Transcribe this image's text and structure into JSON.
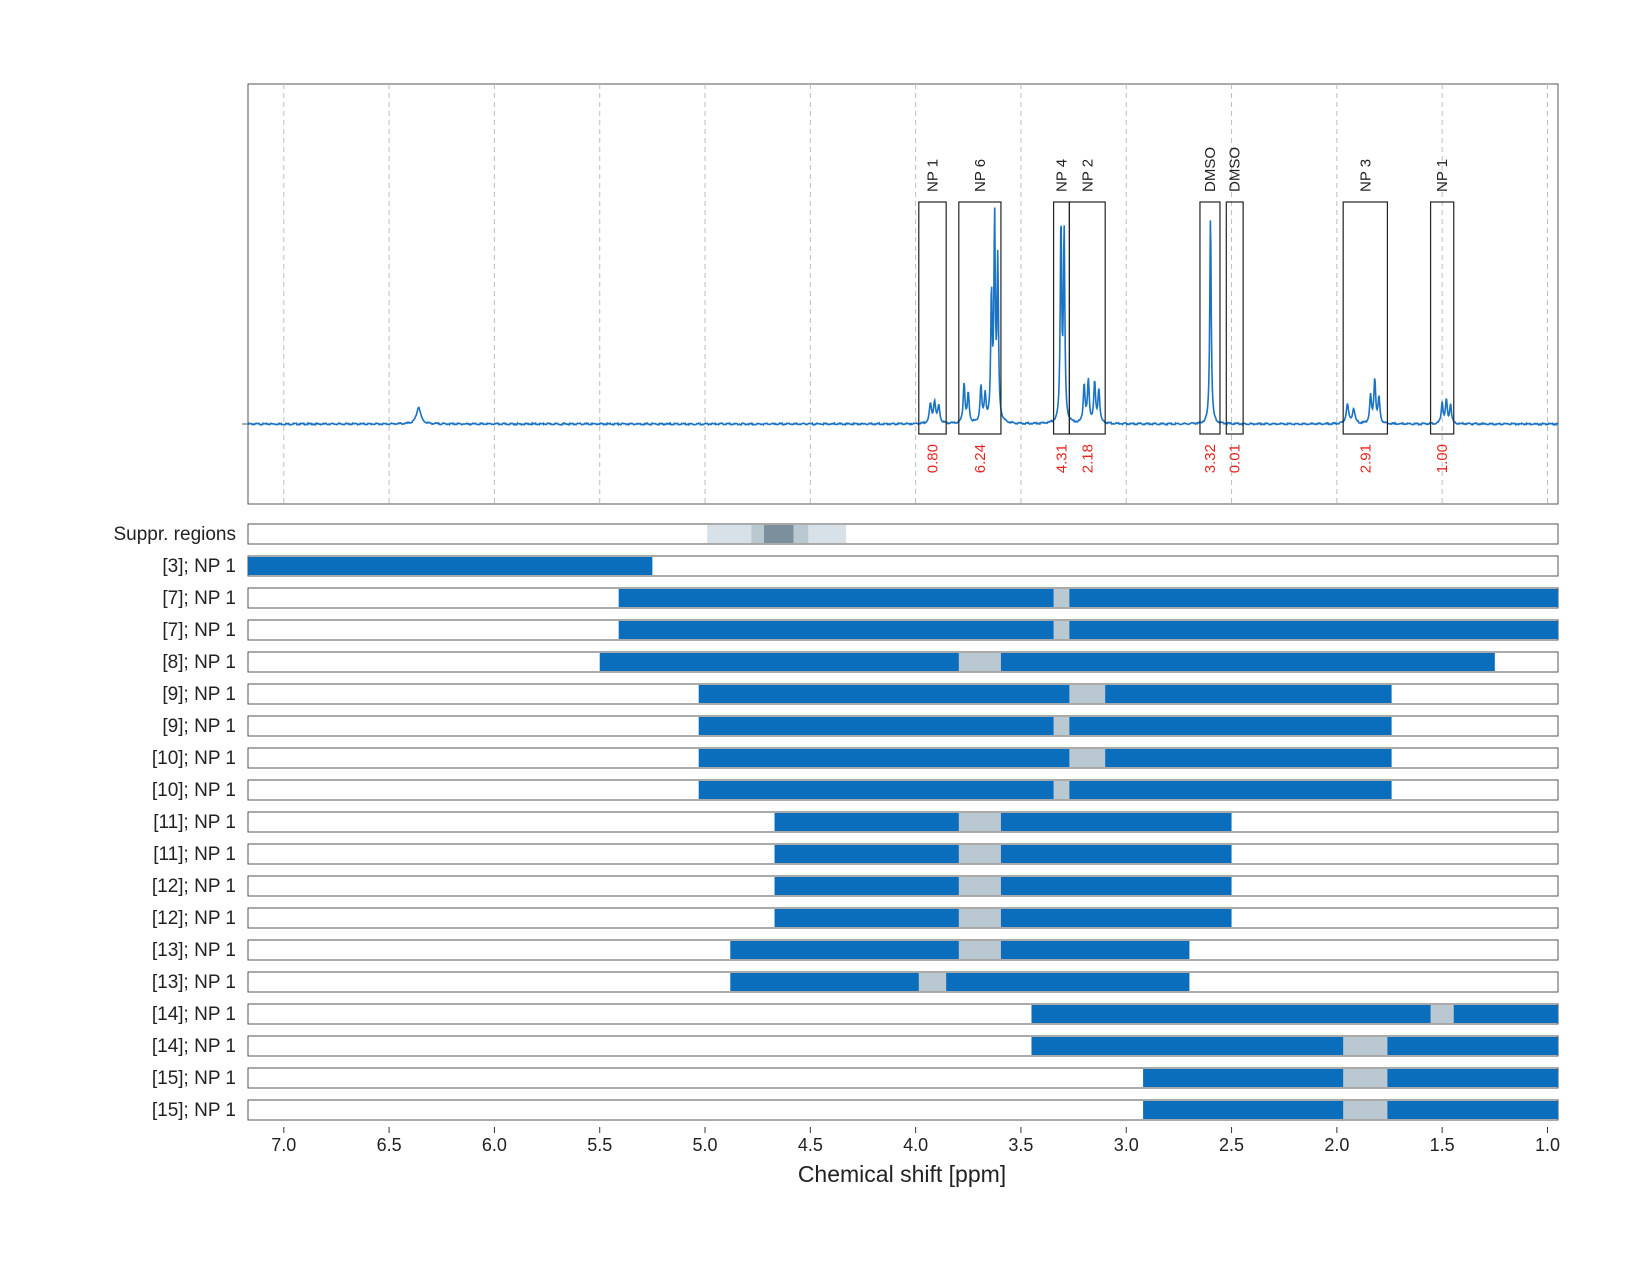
{
  "chart_data": {
    "type": "nmr-spectrum-with-range-bars",
    "xlabel": "Chemical shift [ppm]",
    "x_axis": {
      "reversed": true,
      "range": [
        7.17,
        0.95
      ],
      "ticks": [
        7.0,
        6.5,
        6.0,
        5.5,
        5.0,
        4.5,
        4.0,
        3.5,
        3.0,
        2.5,
        2.0,
        1.5,
        1.0
      ],
      "tick_labels": [
        "7.0",
        "6.5",
        "6.0",
        "5.5",
        "5.0",
        "4.5",
        "4.0",
        "3.5",
        "3.0",
        "2.5",
        "2.0",
        "1.5",
        "1.0"
      ]
    },
    "grid": {
      "vertical_dashed": true
    },
    "spectrum": {
      "color": "#1a73c4",
      "baseline": 0,
      "peaks": [
        {
          "center": 6.36,
          "height": 0.08,
          "width": 0.012
        },
        {
          "center": 3.93,
          "height": 0.09,
          "width": 0.006
        },
        {
          "center": 3.91,
          "height": 0.1,
          "width": 0.006
        },
        {
          "center": 3.89,
          "height": 0.08,
          "width": 0.006
        },
        {
          "center": 3.77,
          "height": 0.19,
          "width": 0.005
        },
        {
          "center": 3.75,
          "height": 0.14,
          "width": 0.005
        },
        {
          "center": 3.69,
          "height": 0.17,
          "width": 0.005
        },
        {
          "center": 3.67,
          "height": 0.13,
          "width": 0.005
        },
        {
          "center": 3.64,
          "height": 0.6,
          "width": 0.004
        },
        {
          "center": 3.625,
          "height": 0.95,
          "width": 0.004
        },
        {
          "center": 3.61,
          "height": 0.75,
          "width": 0.004
        },
        {
          "center": 3.31,
          "height": 0.95,
          "width": 0.004
        },
        {
          "center": 3.295,
          "height": 0.9,
          "width": 0.004
        },
        {
          "center": 3.2,
          "height": 0.18,
          "width": 0.005
        },
        {
          "center": 3.18,
          "height": 0.2,
          "width": 0.005
        },
        {
          "center": 3.15,
          "height": 0.19,
          "width": 0.005
        },
        {
          "center": 3.13,
          "height": 0.16,
          "width": 0.005
        },
        {
          "center": 2.6,
          "height": 1.0,
          "width": 0.004
        },
        {
          "center": 1.95,
          "height": 0.09,
          "width": 0.007
        },
        {
          "center": 1.92,
          "height": 0.07,
          "width": 0.007
        },
        {
          "center": 1.84,
          "height": 0.13,
          "width": 0.005
        },
        {
          "center": 1.82,
          "height": 0.21,
          "width": 0.005
        },
        {
          "center": 1.8,
          "height": 0.12,
          "width": 0.005
        },
        {
          "center": 1.5,
          "height": 0.1,
          "width": 0.005
        },
        {
          "center": 1.48,
          "height": 0.11,
          "width": 0.005
        },
        {
          "center": 1.46,
          "height": 0.09,
          "width": 0.005
        }
      ]
    },
    "integration_regions": [
      {
        "label": "NP 1",
        "x_from": 3.985,
        "x_to": 3.855,
        "value": "0.80"
      },
      {
        "label": "NP 6",
        "x_from": 3.795,
        "x_to": 3.595,
        "value": "6.24"
      },
      {
        "label": "NP 4",
        "x_from": 3.345,
        "x_to": 3.27,
        "value": "4.31"
      },
      {
        "label": "NP 2",
        "x_from": 3.27,
        "x_to": 3.1,
        "value": "2.18"
      },
      {
        "label": "DMSO",
        "x_from": 2.65,
        "x_to": 2.555,
        "value": "3.32"
      },
      {
        "label": "DMSO",
        "x_from": 2.525,
        "x_to": 2.445,
        "value": "0.01"
      },
      {
        "label": "NP 3",
        "x_from": 1.97,
        "x_to": 1.76,
        "value": "2.91"
      },
      {
        "label": "NP 1",
        "x_from": 1.555,
        "x_to": 1.445,
        "value": "1.00"
      }
    ],
    "suppression_row": {
      "label": "Suppr. regions",
      "segments": [
        {
          "from": 4.99,
          "to": 4.33,
          "level": 1
        },
        {
          "from": 4.78,
          "to": 4.51,
          "level": 2
        },
        {
          "from": 4.72,
          "to": 4.58,
          "level": 3
        }
      ]
    },
    "range_rows": [
      {
        "label": "[3]; NP 1",
        "from": 7.17,
        "to": 5.25,
        "gaps": []
      },
      {
        "label": "[7]; NP 1",
        "from": 5.41,
        "to": 0.95,
        "gaps": [
          [
            3.345,
            3.27
          ]
        ]
      },
      {
        "label": "[7]; NP 1",
        "from": 5.41,
        "to": 0.95,
        "gaps": [
          [
            3.345,
            3.27
          ]
        ]
      },
      {
        "label": "[8]; NP 1",
        "from": 5.5,
        "to": 1.25,
        "gaps": [
          [
            3.795,
            3.595
          ]
        ]
      },
      {
        "label": "[9]; NP 1",
        "from": 5.03,
        "to": 1.74,
        "gaps": [
          [
            3.27,
            3.1
          ]
        ]
      },
      {
        "label": "[9]; NP 1",
        "from": 5.03,
        "to": 1.74,
        "gaps": [
          [
            3.345,
            3.27
          ]
        ]
      },
      {
        "label": "[10]; NP 1",
        "from": 5.03,
        "to": 1.74,
        "gaps": [
          [
            3.27,
            3.1
          ]
        ]
      },
      {
        "label": "[10]; NP 1",
        "from": 5.03,
        "to": 1.74,
        "gaps": [
          [
            3.345,
            3.27
          ]
        ]
      },
      {
        "label": "[11]; NP 1",
        "from": 4.67,
        "to": 2.5,
        "gaps": [
          [
            3.795,
            3.595
          ]
        ]
      },
      {
        "label": "[11]; NP 1",
        "from": 4.67,
        "to": 2.5,
        "gaps": [
          [
            3.795,
            3.595
          ]
        ]
      },
      {
        "label": "[12]; NP 1",
        "from": 4.67,
        "to": 2.5,
        "gaps": [
          [
            3.795,
            3.595
          ]
        ]
      },
      {
        "label": "[12]; NP 1",
        "from": 4.67,
        "to": 2.5,
        "gaps": [
          [
            3.795,
            3.595
          ]
        ]
      },
      {
        "label": "[13]; NP 1",
        "from": 4.88,
        "to": 2.7,
        "gaps": [
          [
            3.795,
            3.595
          ]
        ]
      },
      {
        "label": "[13]; NP 1",
        "from": 4.88,
        "to": 2.7,
        "gaps": [
          [
            3.985,
            3.855
          ]
        ]
      },
      {
        "label": "[14]; NP 1",
        "from": 3.45,
        "to": 0.95,
        "gaps": [
          [
            1.555,
            1.445
          ]
        ]
      },
      {
        "label": "[14]; NP 1",
        "from": 3.45,
        "to": 0.95,
        "gaps": [
          [
            1.97,
            1.76
          ]
        ]
      },
      {
        "label": "[15]; NP 1",
        "from": 2.92,
        "to": 0.95,
        "gaps": [
          [
            1.97,
            1.76
          ]
        ]
      },
      {
        "label": "[15]; NP 1",
        "from": 2.92,
        "to": 0.95,
        "gaps": [
          [
            1.97,
            1.76
          ]
        ]
      }
    ],
    "colors": {
      "bar": "#0a6ebd",
      "gap": "#b9c8d1",
      "spectrum": "#1a73c4",
      "integral_value": "#e8231f",
      "suppr_level_1": "#d8e1e7",
      "suppr_level_2": "#b9c8d1",
      "suppr_level_3": "#7c8f9c"
    }
  }
}
